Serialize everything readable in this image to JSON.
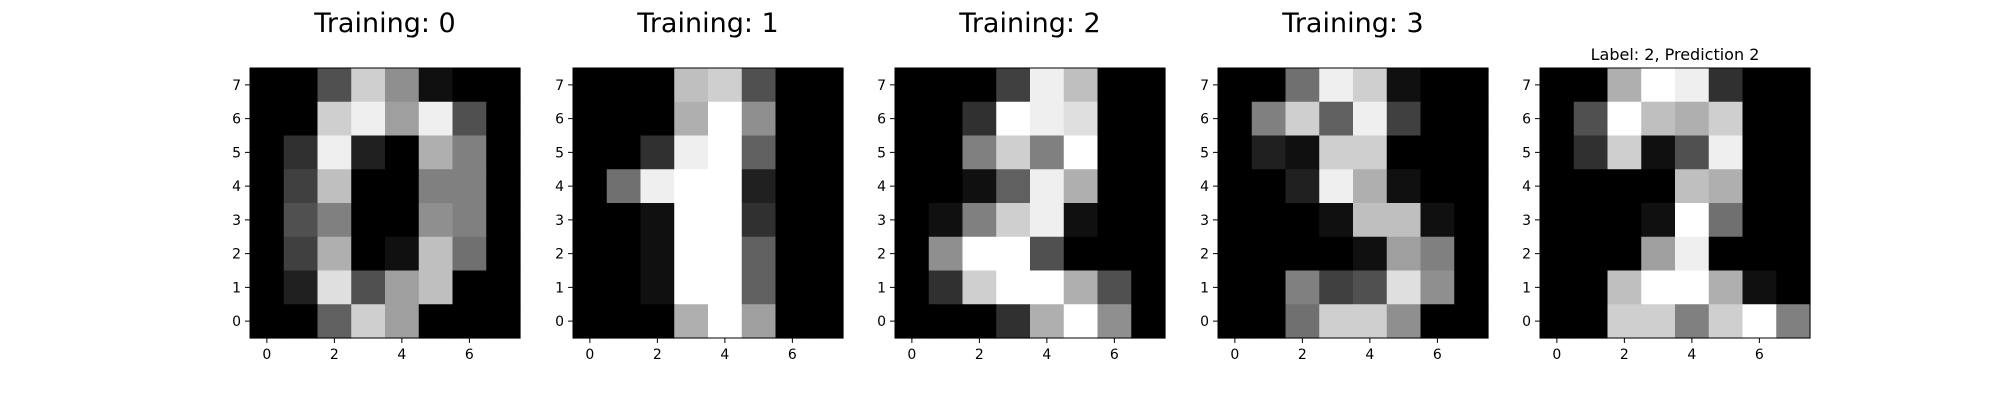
{
  "chart_data": [
    {
      "type": "heatmap",
      "title": "Training: 0",
      "colormap": "gray",
      "xticks": [
        0,
        2,
        4,
        6
      ],
      "yticks": [
        0,
        1,
        2,
        3,
        4,
        5,
        6,
        7
      ],
      "xlim": [
        -0.5,
        7.5
      ],
      "ylim": [
        7.5,
        -0.5
      ],
      "values": [
        [
          0,
          0,
          5,
          13,
          9,
          1,
          0,
          0
        ],
        [
          0,
          0,
          13,
          15,
          10,
          15,
          5,
          0
        ],
        [
          0,
          3,
          15,
          2,
          0,
          11,
          8,
          0
        ],
        [
          0,
          4,
          12,
          0,
          0,
          8,
          8,
          0
        ],
        [
          0,
          5,
          8,
          0,
          0,
          9,
          8,
          0
        ],
        [
          0,
          4,
          11,
          0,
          1,
          12,
          7,
          0
        ],
        [
          0,
          2,
          14,
          5,
          10,
          12,
          0,
          0
        ],
        [
          0,
          0,
          6,
          13,
          10,
          0,
          0,
          0
        ]
      ]
    },
    {
      "type": "heatmap",
      "title": "Training: 1",
      "colormap": "gray",
      "xticks": [
        0,
        2,
        4,
        6
      ],
      "yticks": [
        0,
        1,
        2,
        3,
        4,
        5,
        6,
        7
      ],
      "xlim": [
        -0.5,
        7.5
      ],
      "ylim": [
        7.5,
        -0.5
      ],
      "values": [
        [
          0,
          0,
          0,
          12,
          13,
          5,
          0,
          0
        ],
        [
          0,
          0,
          0,
          11,
          16,
          9,
          0,
          0
        ],
        [
          0,
          0,
          3,
          15,
          16,
          6,
          0,
          0
        ],
        [
          0,
          7,
          15,
          16,
          16,
          2,
          0,
          0
        ],
        [
          0,
          0,
          1,
          16,
          16,
          3,
          0,
          0
        ],
        [
          0,
          0,
          1,
          16,
          16,
          6,
          0,
          0
        ],
        [
          0,
          0,
          1,
          16,
          16,
          6,
          0,
          0
        ],
        [
          0,
          0,
          0,
          11,
          16,
          10,
          0,
          0
        ]
      ]
    },
    {
      "type": "heatmap",
      "title": "Training: 2",
      "colormap": "gray",
      "xticks": [
        0,
        2,
        4,
        6
      ],
      "yticks": [
        0,
        1,
        2,
        3,
        4,
        5,
        6,
        7
      ],
      "xlim": [
        -0.5,
        7.5
      ],
      "ylim": [
        7.5,
        -0.5
      ],
      "values": [
        [
          0,
          0,
          0,
          4,
          15,
          12,
          0,
          0
        ],
        [
          0,
          0,
          3,
          16,
          15,
          14,
          0,
          0
        ],
        [
          0,
          0,
          8,
          13,
          8,
          16,
          0,
          0
        ],
        [
          0,
          0,
          1,
          6,
          15,
          11,
          0,
          0
        ],
        [
          0,
          1,
          8,
          13,
          15,
          1,
          0,
          0
        ],
        [
          0,
          9,
          16,
          16,
          5,
          0,
          0,
          0
        ],
        [
          0,
          3,
          13,
          16,
          16,
          11,
          5,
          0
        ],
        [
          0,
          0,
          0,
          3,
          11,
          16,
          9,
          0
        ]
      ]
    },
    {
      "type": "heatmap",
      "title": "Training: 3",
      "colormap": "gray",
      "xticks": [
        0,
        2,
        4,
        6
      ],
      "yticks": [
        0,
        1,
        2,
        3,
        4,
        5,
        6,
        7
      ],
      "xlim": [
        -0.5,
        7.5
      ],
      "ylim": [
        7.5,
        -0.5
      ],
      "values": [
        [
          0,
          0,
          7,
          15,
          13,
          1,
          0,
          0
        ],
        [
          0,
          8,
          13,
          6,
          15,
          4,
          0,
          0
        ],
        [
          0,
          2,
          1,
          13,
          13,
          0,
          0,
          0
        ],
        [
          0,
          0,
          2,
          15,
          11,
          1,
          0,
          0
        ],
        [
          0,
          0,
          0,
          1,
          12,
          12,
          1,
          0
        ],
        [
          0,
          0,
          0,
          0,
          1,
          10,
          8,
          0
        ],
        [
          0,
          0,
          8,
          4,
          5,
          14,
          9,
          0
        ],
        [
          0,
          0,
          7,
          13,
          13,
          9,
          0,
          0
        ]
      ]
    },
    {
      "type": "heatmap",
      "title": "Label: 2, Prediction 2",
      "colormap": "gray",
      "xticks": [
        0,
        2,
        4,
        6
      ],
      "yticks": [
        0,
        1,
        2,
        3,
        4,
        5,
        6,
        7
      ],
      "xlim": [
        -0.5,
        7.5
      ],
      "ylim": [
        7.5,
        -0.5
      ],
      "values": [
        [
          0,
          0,
          11,
          16,
          15,
          3,
          0,
          0
        ],
        [
          0,
          5,
          16,
          12,
          11,
          13,
          0,
          0
        ],
        [
          0,
          3,
          13,
          1,
          5,
          15,
          0,
          0
        ],
        [
          0,
          0,
          0,
          0,
          12,
          11,
          0,
          0
        ],
        [
          0,
          0,
          0,
          1,
          16,
          7,
          0,
          0
        ],
        [
          0,
          0,
          0,
          10,
          15,
          0,
          0,
          0
        ],
        [
          0,
          0,
          12,
          16,
          16,
          11,
          1,
          0
        ],
        [
          0,
          0,
          13,
          13,
          8,
          13,
          16,
          8
        ]
      ]
    }
  ]
}
